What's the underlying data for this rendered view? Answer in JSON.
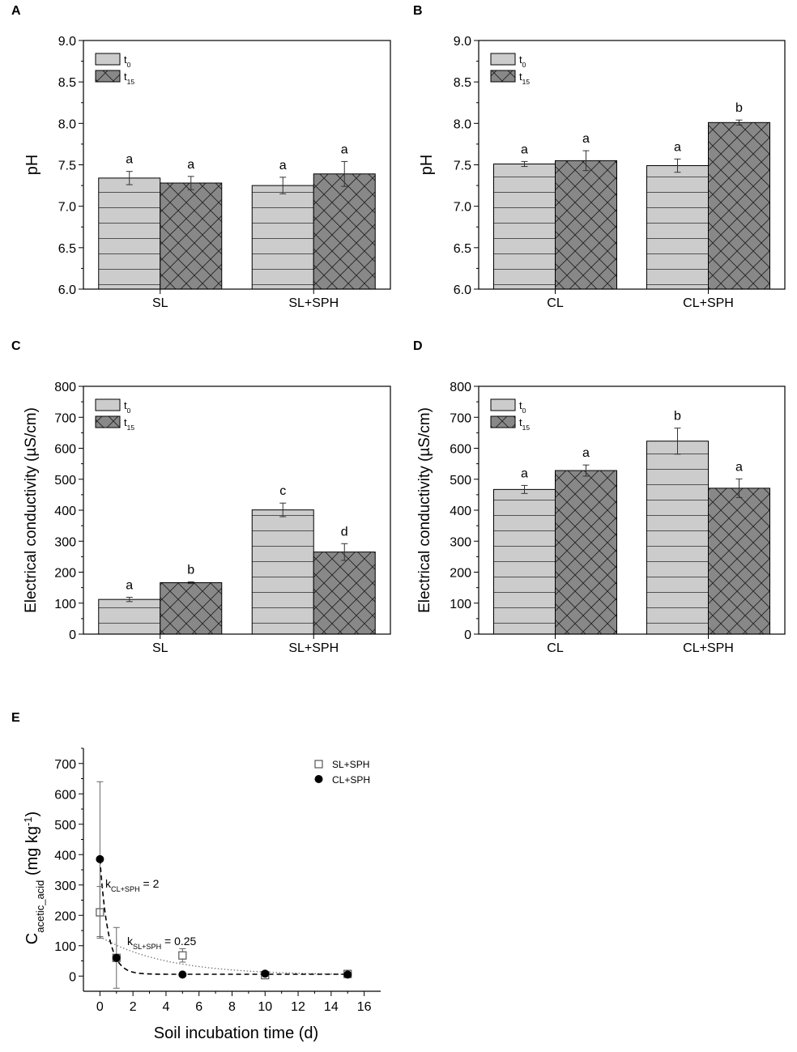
{
  "chart_data": [
    {
      "panel": "A",
      "type": "bar",
      "categories": [
        "SL",
        "SL+SPH"
      ],
      "series": [
        {
          "name": "t",
          "sub": "0",
          "pattern": "hlines",
          "color": "#cccccc",
          "values": [
            7.34,
            7.25
          ],
          "errors": [
            0.08,
            0.1
          ],
          "letters": [
            "a",
            "a"
          ]
        },
        {
          "name": "t",
          "sub": "15",
          "pattern": "cross",
          "color": "#888888",
          "values": [
            7.28,
            7.39
          ],
          "errors": [
            0.08,
            0.15
          ],
          "letters": [
            "a",
            "a"
          ]
        }
      ],
      "ylabel": "pH",
      "ylim": [
        6.0,
        9.0
      ],
      "yticks": [
        "6.0",
        "6.5",
        "7.0",
        "7.5",
        "8.0",
        "8.5",
        "9.0"
      ],
      "legend": "top-left"
    },
    {
      "panel": "B",
      "type": "bar",
      "categories": [
        "CL",
        "CL+SPH"
      ],
      "series": [
        {
          "name": "t",
          "sub": "0",
          "pattern": "hlines",
          "color": "#cccccc",
          "values": [
            7.51,
            7.49
          ],
          "errors": [
            0.03,
            0.08
          ],
          "letters": [
            "a",
            "a"
          ]
        },
        {
          "name": "t",
          "sub": "15",
          "pattern": "cross",
          "color": "#888888",
          "values": [
            7.55,
            8.01
          ],
          "errors": [
            0.12,
            0.03
          ],
          "letters": [
            "a",
            "b"
          ]
        }
      ],
      "ylabel": "pH",
      "ylim": [
        6.0,
        9.0
      ],
      "yticks": [
        "6.0",
        "6.5",
        "7.0",
        "7.5",
        "8.0",
        "8.5",
        "9.0"
      ],
      "legend": "top-left"
    },
    {
      "panel": "C",
      "type": "bar",
      "categories": [
        "SL",
        "SL+SPH"
      ],
      "series": [
        {
          "name": "t",
          "sub": "0",
          "pattern": "hlines",
          "color": "#cccccc",
          "values": [
            112,
            401
          ],
          "errors": [
            7,
            22
          ],
          "letters": [
            "a",
            "c"
          ]
        },
        {
          "name": "t",
          "sub": "15",
          "pattern": "cross",
          "color": "#888888",
          "values": [
            166,
            265
          ],
          "errors": [
            3,
            27
          ],
          "letters": [
            "b",
            "d"
          ]
        }
      ],
      "ylabel": "Electrical conductivity (µS/cm)",
      "ylim": [
        0,
        800
      ],
      "yticks": [
        "0",
        "100",
        "200",
        "300",
        "400",
        "500",
        "600",
        "700",
        "800"
      ],
      "legend": "top-left"
    },
    {
      "panel": "D",
      "type": "bar",
      "categories": [
        "CL",
        "CL+SPH"
      ],
      "series": [
        {
          "name": "t",
          "sub": "0",
          "pattern": "hlines",
          "color": "#cccccc",
          "values": [
            467,
            623
          ],
          "errors": [
            13,
            42
          ],
          "letters": [
            "a",
            "b"
          ]
        },
        {
          "name": "t",
          "sub": "15",
          "pattern": "cross",
          "color": "#888888",
          "values": [
            528,
            471
          ],
          "errors": [
            18,
            30
          ],
          "letters": [
            "a",
            "a"
          ]
        }
      ],
      "ylabel": "Electrical conductivity (µS/cm)",
      "ylim": [
        0,
        800
      ],
      "yticks": [
        "0",
        "100",
        "200",
        "300",
        "400",
        "500",
        "600",
        "700",
        "800"
      ],
      "legend": "top-left"
    },
    {
      "panel": "E",
      "type": "scatter",
      "xlabel": "Soil incubation time (d)",
      "ylabel_main": "C",
      "ylabel_sub": "acetic_acid",
      "ylabel_rest": " (mg kg",
      "ylabel_sup": "-1",
      "ylabel_end": ")",
      "xlim": [
        -1,
        17
      ],
      "ylim": [
        -50,
        750
      ],
      "xticks": [
        "0",
        "2",
        "4",
        "6",
        "8",
        "10",
        "12",
        "14",
        "16"
      ],
      "yticks": [
        "0",
        "100",
        "200",
        "300",
        "400",
        "500",
        "600",
        "700"
      ],
      "series": [
        {
          "name": "SL+SPH",
          "marker": "open-square",
          "x": [
            0,
            1,
            5,
            10,
            15
          ],
          "y": [
            210,
            60,
            68,
            3,
            7
          ],
          "errors": [
            85,
            100,
            22,
            3,
            4
          ],
          "fit": "dotted",
          "k": 0.25
        },
        {
          "name": "CL+SPH",
          "marker": "filled-circle",
          "x": [
            0,
            1,
            5,
            10,
            15
          ],
          "y": [
            385,
            60,
            5,
            8,
            5
          ],
          "errors": [
            255,
            0,
            0,
            0,
            0
          ],
          "fit": "dashed",
          "k": 2
        }
      ],
      "annotations": [
        {
          "main": "k",
          "sub": "CL+SPH",
          "rest": " = 2"
        },
        {
          "main": "k",
          "sub": "SL+SPH",
          "rest": " = 0.25"
        }
      ],
      "legend": "top-right"
    }
  ]
}
